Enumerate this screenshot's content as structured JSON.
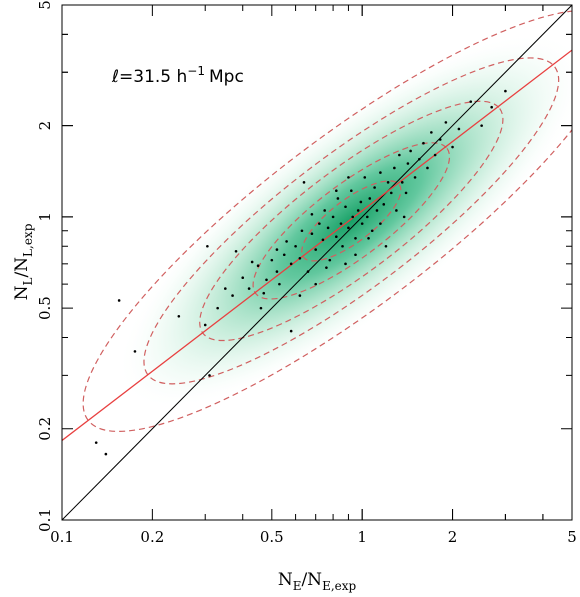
{
  "chart_data": {
    "type": "scatter",
    "x_scale": "log",
    "y_scale": "log",
    "xlim": [
      0.1,
      5
    ],
    "ylim": [
      0.1,
      5
    ],
    "x_ticks": [
      0.1,
      0.2,
      0.5,
      1,
      2,
      5
    ],
    "x_tick_labels": [
      "0.1",
      "0.2",
      "0.5",
      "1",
      "2",
      "5"
    ],
    "y_ticks": [
      0.1,
      0.2,
      0.5,
      1,
      2,
      5
    ],
    "y_tick_labels": [
      "0.1",
      "0.2",
      "0.5",
      "1",
      "2",
      "5"
    ],
    "xlabel": {
      "main": "N",
      "sub1": "E",
      "mid": "/N",
      "sub2": "E,exp"
    },
    "ylabel": {
      "main": "N",
      "sub1": "L",
      "mid": "/N",
      "sub2": "L,exp"
    },
    "annotation": {
      "prefix": "ℓ=31.5 h",
      "sup": "−1",
      "suffix": "Mpc"
    },
    "colors": {
      "density": "#0c9b5e",
      "contours": "#d06060",
      "fit_line": "#e84040",
      "identity_line": "#000000",
      "points": "#000000"
    },
    "identity_line": {
      "x": [
        0.1,
        5
      ],
      "y": [
        0.1,
        5
      ]
    },
    "fit_line": {
      "x": [
        0.1,
        5
      ],
      "y": [
        0.183,
        3.55
      ]
    },
    "density_center": {
      "x": 0.92,
      "y": 0.97
    },
    "contours": [
      {
        "cx": 0.92,
        "cy": 0.97,
        "rx": 0.2,
        "ry": 0.07,
        "angle": 0.62
      },
      {
        "cx": 0.92,
        "cy": 0.97,
        "rx": 0.4,
        "ry": 0.12,
        "angle": 0.62
      },
      {
        "cx": 0.92,
        "cy": 0.97,
        "rx": 0.62,
        "ry": 0.17,
        "angle": 0.62
      },
      {
        "cx": 0.92,
        "cy": 0.97,
        "rx": 0.85,
        "ry": 0.22,
        "angle": 0.62
      },
      {
        "cx": 0.92,
        "cy": 0.97,
        "rx": 1.1,
        "ry": 0.28,
        "angle": 0.62
      }
    ],
    "points": [
      [
        0.13,
        0.18
      ],
      [
        0.14,
        0.165
      ],
      [
        0.155,
        0.53
      ],
      [
        0.175,
        0.36
      ],
      [
        0.245,
        0.47
      ],
      [
        0.305,
        0.8
      ],
      [
        0.31,
        0.3
      ],
      [
        0.3,
        0.44
      ],
      [
        0.33,
        0.5
      ],
      [
        0.35,
        0.58
      ],
      [
        0.37,
        0.55
      ],
      [
        0.38,
        0.77
      ],
      [
        0.4,
        0.63
      ],
      [
        0.42,
        0.58
      ],
      [
        0.43,
        0.71
      ],
      [
        0.45,
        0.69
      ],
      [
        0.46,
        0.5
      ],
      [
        0.48,
        0.62
      ],
      [
        0.5,
        0.72
      ],
      [
        0.52,
        0.66
      ],
      [
        0.53,
        0.6
      ],
      [
        0.55,
        0.75
      ],
      [
        0.56,
        0.83
      ],
      [
        0.58,
        0.7
      ],
      [
        0.6,
        0.8
      ],
      [
        0.62,
        0.73
      ],
      [
        0.63,
        0.9
      ],
      [
        0.64,
        1.3
      ],
      [
        0.66,
        0.66
      ],
      [
        0.68,
        0.88
      ],
      [
        0.7,
        0.78
      ],
      [
        0.72,
        0.95
      ],
      [
        0.74,
        0.84
      ],
      [
        0.75,
        1.05
      ],
      [
        0.77,
        0.92
      ],
      [
        0.78,
        0.72
      ],
      [
        0.8,
        1.0
      ],
      [
        0.82,
        0.86
      ],
      [
        0.83,
        1.15
      ],
      [
        0.85,
        0.95
      ],
      [
        0.86,
        0.8
      ],
      [
        0.88,
        1.08
      ],
      [
        0.9,
        0.92
      ],
      [
        0.92,
        1.22
      ],
      [
        0.93,
        1.0
      ],
      [
        0.95,
        0.85
      ],
      [
        0.97,
        1.05
      ],
      [
        0.99,
        1.12
      ],
      [
        1.0,
        0.95
      ],
      [
        1.02,
        1.35
      ],
      [
        1.04,
        1.0
      ],
      [
        1.06,
        1.15
      ],
      [
        1.08,
        0.9
      ],
      [
        1.1,
        1.25
      ],
      [
        1.12,
        1.05
      ],
      [
        1.15,
        1.4
      ],
      [
        1.18,
        1.1
      ],
      [
        1.2,
        0.8
      ],
      [
        1.22,
        1.3
      ],
      [
        1.25,
        1.2
      ],
      [
        1.28,
        1.45
      ],
      [
        1.3,
        1.05
      ],
      [
        1.33,
        1.6
      ],
      [
        1.36,
        1.3
      ],
      [
        1.4,
        1.2
      ],
      [
        1.42,
        1.5
      ],
      [
        1.45,
        1.65
      ],
      [
        1.5,
        1.35
      ],
      [
        1.55,
        1.55
      ],
      [
        1.6,
        1.75
      ],
      [
        1.65,
        1.45
      ],
      [
        1.7,
        1.9
      ],
      [
        1.75,
        1.6
      ],
      [
        1.82,
        1.8
      ],
      [
        1.9,
        2.05
      ],
      [
        2.0,
        1.7
      ],
      [
        2.1,
        1.95
      ],
      [
        2.3,
        2.4
      ],
      [
        2.5,
        2.0
      ],
      [
        2.7,
        2.3
      ],
      [
        3.0,
        2.6
      ],
      [
        0.58,
        0.42
      ],
      [
        0.62,
        0.55
      ],
      [
        0.7,
        0.6
      ],
      [
        0.88,
        0.7
      ],
      [
        0.95,
        0.75
      ],
      [
        0.76,
        0.68
      ],
      [
        1.05,
        0.85
      ],
      [
        0.52,
        0.78
      ],
      [
        0.68,
        1.02
      ],
      [
        0.82,
        1.22
      ],
      [
        0.9,
        1.35
      ],
      [
        1.15,
        0.95
      ],
      [
        1.38,
        1.0
      ],
      [
        0.47,
        0.56
      ]
    ]
  }
}
